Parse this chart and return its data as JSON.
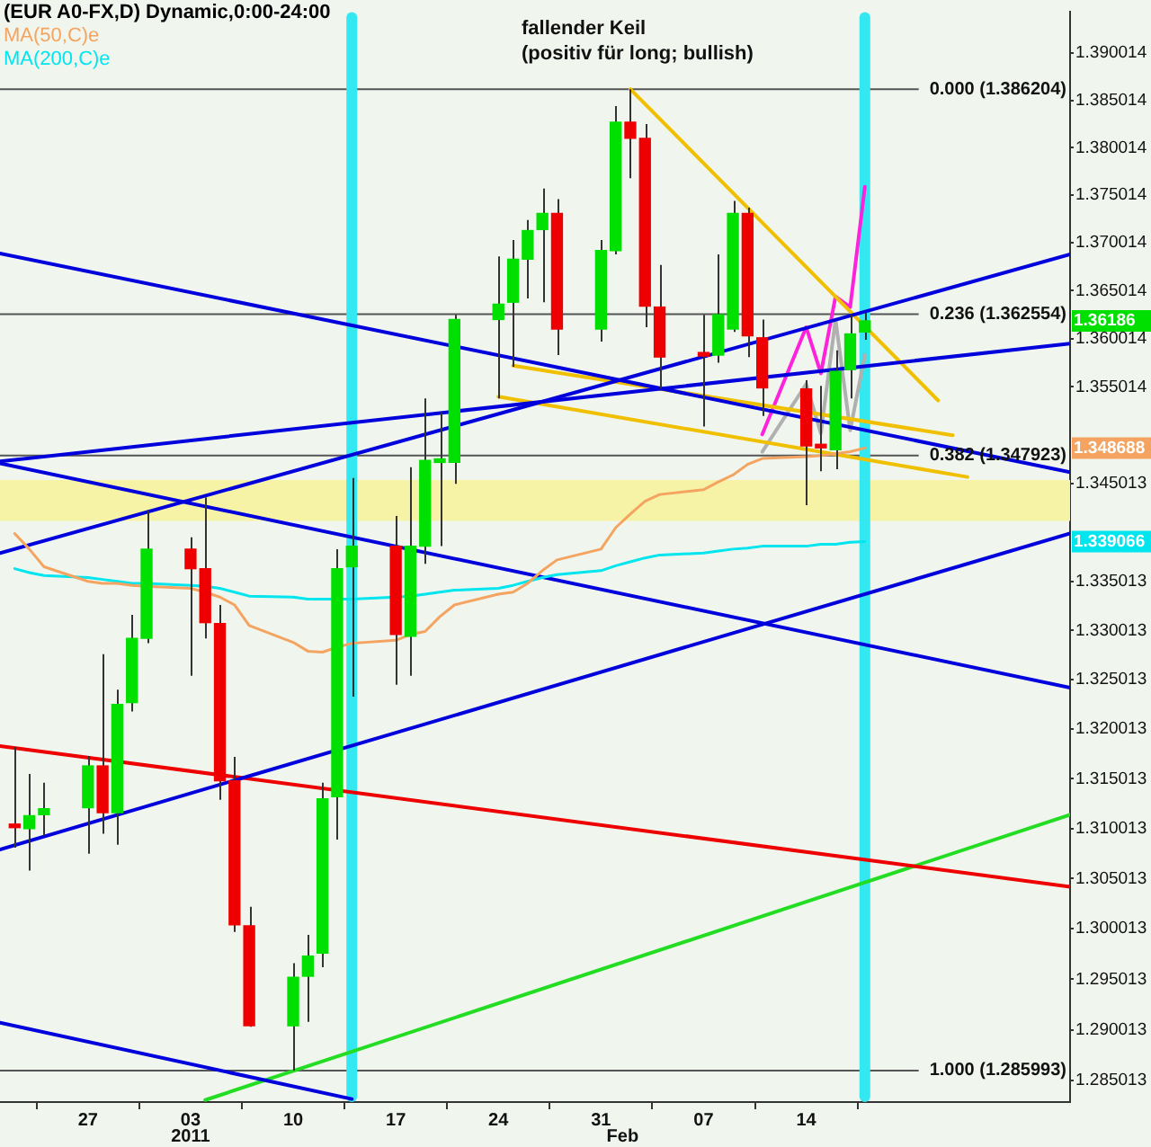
{
  "chart_data": {
    "type": "candlestick",
    "title": "(EUR A0-FX,D) Dynamic,0:00-24:00",
    "x": [
      "2010-12-22",
      "2010-12-23",
      "2010-12-24",
      "2010-12-27",
      "2010-12-28",
      "2010-12-29",
      "2010-12-30",
      "2010-12-31",
      "2011-01-03",
      "2011-01-04",
      "2011-01-05",
      "2011-01-06",
      "2011-01-07",
      "2011-01-10",
      "2011-01-11",
      "2011-01-12",
      "2011-01-13",
      "2011-01-14",
      "2011-01-17",
      "2011-01-18",
      "2011-01-19",
      "2011-01-20",
      "2011-01-21",
      "2011-01-24",
      "2011-01-25",
      "2011-01-26",
      "2011-01-27",
      "2011-01-28",
      "2011-01-31",
      "2011-02-01",
      "2011-02-02",
      "2011-02-03",
      "2011-02-04",
      "2011-02-07",
      "2011-02-08",
      "2011-02-09",
      "2011-02-10",
      "2011-02-11",
      "2011-02-14",
      "2011-02-15",
      "2011-02-16",
      "2011-02-17",
      "2011-02-18"
    ],
    "ohlc": [
      [
        1.3102,
        1.3182,
        1.3081,
        1.3101
      ],
      [
        1.31,
        1.3155,
        1.3058,
        1.3113
      ],
      [
        1.3114,
        1.3146,
        1.3093,
        1.312
      ],
      [
        1.3121,
        1.3173,
        1.3075,
        1.3163
      ],
      [
        1.3163,
        1.3276,
        1.3095,
        1.3116
      ],
      [
        1.3116,
        1.324,
        1.3084,
        1.3225
      ],
      [
        1.3227,
        1.3316,
        1.3218,
        1.3292
      ],
      [
        1.3292,
        1.3423,
        1.3287,
        1.3383
      ],
      [
        1.3383,
        1.3395,
        1.3254,
        1.3363
      ],
      [
        1.3363,
        1.3436,
        1.3292,
        1.3308
      ],
      [
        1.3307,
        1.3326,
        1.3129,
        1.3148
      ],
      [
        1.3148,
        1.3172,
        1.2997,
        1.3004
      ],
      [
        1.3003,
        1.3022,
        1.2903,
        1.2904
      ],
      [
        1.2904,
        1.2966,
        1.285993,
        1.2952
      ],
      [
        1.2953,
        1.2994,
        1.2908,
        1.2973
      ],
      [
        1.2976,
        1.3146,
        1.2962,
        1.313
      ],
      [
        1.3132,
        1.3383,
        1.3089,
        1.3363
      ],
      [
        1.3365,
        1.3456,
        1.3233,
        1.3386
      ],
      [
        1.3386,
        1.3417,
        1.3245,
        1.3296
      ],
      [
        1.3294,
        1.3467,
        1.3254,
        1.3386
      ],
      [
        1.3386,
        1.3538,
        1.3368,
        1.3474
      ],
      [
        1.3472,
        1.3524,
        1.3386,
        1.3473
      ],
      [
        1.3472,
        1.3625,
        1.345,
        1.362
      ],
      [
        1.362,
        1.3686,
        1.3538,
        1.3636
      ],
      [
        1.3638,
        1.3703,
        1.3571,
        1.3683
      ],
      [
        1.3683,
        1.3724,
        1.3642,
        1.3713
      ],
      [
        1.3714,
        1.3757,
        1.3638,
        1.3731
      ],
      [
        1.3731,
        1.3746,
        1.3583,
        1.361
      ],
      [
        1.361,
        1.3703,
        1.3597,
        1.3692
      ],
      [
        1.3692,
        1.3844,
        1.3688,
        1.3827
      ],
      [
        1.3827,
        1.386204,
        1.3768,
        1.381
      ],
      [
        1.381,
        1.3825,
        1.3612,
        1.3634
      ],
      [
        1.3633,
        1.3677,
        1.3548,
        1.3581
      ],
      [
        1.3583,
        1.3625,
        1.3509,
        1.3582
      ],
      [
        1.3583,
        1.3688,
        1.3575,
        1.3625
      ],
      [
        1.361,
        1.3744,
        1.3607,
        1.3731
      ],
      [
        1.3731,
        1.3737,
        1.3581,
        1.3603
      ],
      [
        1.3601,
        1.362,
        1.352,
        1.3549
      ],
      [
        1.3548,
        1.3557,
        1.3428,
        1.3489
      ],
      [
        1.3488,
        1.3551,
        1.3463,
        1.3487
      ],
      [
        1.3485,
        1.3588,
        1.3465,
        1.3566
      ],
      [
        1.3568,
        1.3625,
        1.3538,
        1.3605
      ],
      [
        1.3607,
        1.3627,
        1.3599,
        1.36186
      ]
    ],
    "colors": [
      "#ee0000",
      "#00e000",
      "#00e000",
      "#00e000",
      "#ee0000",
      "#00e000",
      "#00e000",
      "#00e000",
      "#ee0000",
      "#ee0000",
      "#ee0000",
      "#ee0000",
      "#ee0000",
      "#00e000",
      "#00e000",
      "#00e000",
      "#00e000",
      "#00e000",
      "#ee0000",
      "#00e000",
      "#00e000",
      "#00e000",
      "#00e000",
      "#00e000",
      "#00e000",
      "#00e000",
      "#00e000",
      "#ee0000",
      "#00e000",
      "#00e000",
      "#ee0000",
      "#ee0000",
      "#ee0000",
      "#ee0000",
      "#00e000",
      "#00e000",
      "#ee0000",
      "#ee0000",
      "#ee0000",
      "#ee0000",
      "#00e000",
      "#00e000",
      "#00e000"
    ],
    "value_labels": [
      null,
      null,
      null,
      null,
      null,
      null,
      null,
      null,
      null,
      null,
      null,
      null,
      null,
      null,
      null,
      null,
      null,
      null,
      null,
      null,
      null,
      null,
      null,
      null,
      null,
      null,
      null,
      null,
      null,
      null,
      null,
      null,
      null,
      null,
      null,
      null,
      null,
      null,
      null,
      null,
      null,
      null,
      "1.36186"
    ],
    "series": [
      {
        "type": "line",
        "name": "MA(50,C)e",
        "color": "#f4a460",
        "values": [
          1.3399,
          1.3383,
          1.3365,
          1.335,
          1.3348,
          1.3348,
          1.3346,
          1.3345,
          1.3343,
          1.3339,
          1.3334,
          1.3326,
          1.3305,
          1.3288,
          1.3279,
          1.3278,
          1.3283,
          1.3287,
          1.329,
          1.3296,
          1.3299,
          1.3314,
          1.3326,
          1.3337,
          1.3339,
          1.3348,
          1.3361,
          1.3372,
          1.3383,
          1.3405,
          1.3419,
          1.3432,
          1.3439,
          1.3444,
          1.3452,
          1.3459,
          1.347,
          1.3476,
          1.3478,
          1.3479,
          1.3481,
          1.3483,
          1.348688
        ]
      },
      {
        "type": "line",
        "name": "MA(200,C)e",
        "color": "#00e5ee",
        "values": [
          1.3363,
          1.3359,
          1.3356,
          1.3354,
          1.3352,
          1.335,
          1.3348,
          1.3348,
          1.3346,
          1.3345,
          1.3343,
          1.3339,
          1.3335,
          1.3334,
          1.3332,
          1.3332,
          1.3332,
          1.3332,
          1.3334,
          1.3335,
          1.3337,
          1.3339,
          1.3341,
          1.3343,
          1.3346,
          1.335,
          1.3354,
          1.3357,
          1.3361,
          1.3366,
          1.337,
          1.3374,
          1.3377,
          1.3379,
          1.3381,
          1.3383,
          1.3384,
          1.3386,
          1.3386,
          1.3388,
          1.3388,
          1.339,
          1.339066
        ]
      },
      {
        "type": "line",
        "color": "#0000dd",
        "x": [
          "2010-12-21",
          "2011-03-04"
        ],
        "values": [
          1.3689,
          1.3462
        ]
      },
      {
        "type": "line",
        "color": "#0000dd",
        "x": [
          "2010-12-21",
          "2011-03-04"
        ],
        "values": [
          1.3471,
          1.3242
        ]
      },
      {
        "type": "line",
        "color": "#0000dd",
        "x": [
          "2010-12-21",
          "2011-01-14"
        ],
        "values": [
          1.2907,
          1.2832
        ]
      },
      {
        "type": "line",
        "color": "#0000dd",
        "x": [
          "2010-12-21",
          "2011-03-04"
        ],
        "values": [
          1.3473,
          1.3595
        ]
      },
      {
        "type": "line",
        "color": "#0000dd",
        "x": [
          "2010-12-21",
          "2011-03-04"
        ],
        "values": [
          1.3379,
          1.3688
        ]
      },
      {
        "type": "line",
        "color": "#0000dd",
        "x": [
          "2010-12-21",
          "2011-03-04"
        ],
        "values": [
          1.3079,
          1.3399
        ]
      },
      {
        "type": "line",
        "color": "#ee0000",
        "x": [
          "2010-12-21",
          "2011-03-04"
        ],
        "values": [
          1.3183,
          1.3042
        ]
      },
      {
        "type": "line",
        "color": "#22dd22",
        "x": [
          "2011-01-04",
          "2011-03-04"
        ],
        "values": [
          1.2831,
          1.3114
        ]
      },
      {
        "type": "line",
        "color": "#f0c000",
        "x": [
          "2011-02-02",
          "2011-02-23"
        ],
        "values": [
          1.386204,
          1.3536
        ]
      },
      {
        "type": "line",
        "color": "#f0c000",
        "x": [
          "2011-01-25",
          "2011-02-24"
        ],
        "values": [
          1.3572,
          1.35
        ]
      },
      {
        "type": "line",
        "color": "#f0c000",
        "x": [
          "2011-01-24",
          "2011-02-25"
        ],
        "values": [
          1.354,
          1.3457
        ]
      },
      {
        "type": "line",
        "color": "#b0b0b0",
        "x": [
          "2011-02-11",
          "2011-02-14",
          "2011-02-15",
          "2011-02-16",
          "2011-02-17",
          "2011-02-18"
        ],
        "values": [
          1.3483,
          1.3553,
          1.3502,
          1.362,
          1.3505,
          1.3583
        ]
      },
      {
        "type": "line",
        "color": "#ff22dd",
        "x": [
          "2011-02-11",
          "2011-02-14",
          "2011-02-15",
          "2011-02-16",
          "2011-02-17",
          "2011-02-18"
        ],
        "values": [
          1.3501,
          1.3612,
          1.3564,
          1.3644,
          1.3633,
          1.3759
        ]
      }
    ],
    "xlim": [
      "2010-12-21",
      "2011-03-04"
    ],
    "xticks": [
      {
        "value": "2010-12-27",
        "label": "27"
      },
      {
        "value": "2011-01-03",
        "label": "03"
      },
      {
        "value": "2011-01-10",
        "label": "10"
      },
      {
        "value": "2011-01-17",
        "label": "17"
      },
      {
        "value": "2011-01-24",
        "label": "24"
      },
      {
        "value": "2011-01-31",
        "label": "31"
      },
      {
        "value": "2011-02-07",
        "label": "07"
      },
      {
        "value": "2011-02-14",
        "label": "14"
      }
    ],
    "ylim": [
      1.2829,
      1.3944
    ],
    "yticks": [
      1.390014,
      1.385014,
      1.380014,
      1.375014,
      1.370014,
      1.365014,
      1.360014,
      1.355014,
      1.345013,
      1.335013,
      1.330013,
      1.325013,
      1.320013,
      1.315013,
      1.310013,
      1.305013,
      1.300013,
      1.295013,
      1.290013,
      1.285013
    ],
    "log": true,
    "grid": false,
    "legend": "top left",
    "ref_lines": [
      {
        "axis": "y",
        "value": 1.386204,
        "label": "0.000 (1.386204)",
        "color": "#555555"
      },
      {
        "axis": "y",
        "value": 1.362554,
        "label": "0.236 (1.362554)",
        "color": "#555555"
      },
      {
        "axis": "y",
        "value": 1.347923,
        "label": "0.382 (1.347923)",
        "color": "#555555"
      },
      {
        "axis": "y",
        "value": 1.285993,
        "label": "1.000 (1.285993)",
        "color": "#555555"
      },
      {
        "axis": "x",
        "value": "2011-01-14",
        "color": "#33e8f0"
      },
      {
        "axis": "x",
        "value": "2011-02-18",
        "color": "#33e8f0"
      }
    ],
    "bands": [
      {
        "axis": "y",
        "from": 1.3412,
        "to": 1.3454,
        "color": "#f6f2a6"
      }
    ],
    "annotations": [
      "fallender Keil",
      "(positiv für long; bullish)",
      "2011",
      "Feb",
      "1.348688",
      "1.339066"
    ]
  }
}
